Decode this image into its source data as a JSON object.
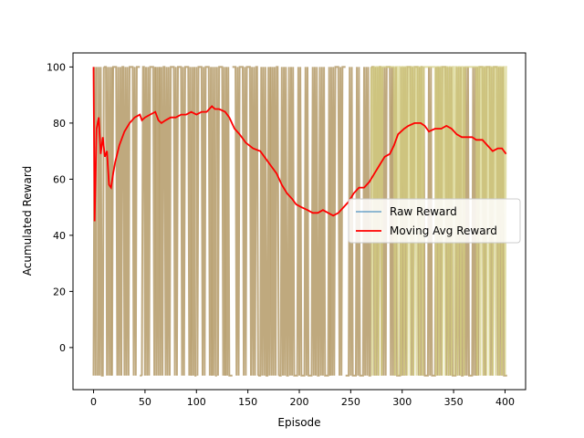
{
  "chart_data": {
    "type": "line",
    "title": "",
    "xlabel": "Episode",
    "ylabel": "Acumulated Reward",
    "xlim": [
      -20,
      420
    ],
    "ylim": [
      -15,
      105
    ],
    "x_ticks": [
      0,
      50,
      100,
      150,
      200,
      250,
      300,
      350,
      400
    ],
    "y_ticks": [
      0,
      20,
      40,
      60,
      80,
      100
    ],
    "grid": false,
    "legend_position": "center-right",
    "series": [
      {
        "name": "Raw Reward",
        "color": "#1f77b4",
        "opacity": 0.55,
        "spans": [
          [
            0,
            3,
            100
          ],
          [
            4,
            10,
            -10
          ],
          [
            10,
            18,
            100
          ],
          [
            18,
            45,
            100
          ],
          [
            45,
            47,
            -10
          ],
          [
            47,
            60,
            100
          ],
          [
            60,
            64,
            -10
          ],
          [
            64,
            95,
            100
          ],
          [
            95,
            100,
            -10
          ],
          [
            100,
            115,
            100
          ],
          [
            115,
            120,
            -10
          ],
          [
            120,
            128,
            100
          ],
          [
            128,
            135,
            -10
          ],
          [
            135,
            160,
            100
          ],
          [
            160,
            172,
            -10
          ],
          [
            172,
            180,
            100
          ],
          [
            180,
            230,
            -10
          ],
          [
            230,
            245,
            100
          ],
          [
            245,
            270,
            -10
          ],
          [
            270,
            290,
            100
          ],
          [
            290,
            300,
            -10
          ],
          [
            300,
            320,
            100
          ],
          [
            320,
            335,
            -10
          ],
          [
            335,
            345,
            100
          ],
          [
            345,
            372,
            -10
          ],
          [
            372,
            398,
            100
          ],
          [
            398,
            402,
            -10
          ]
        ]
      },
      {
        "name": "Moving Avg Reward",
        "color": "#ff0000",
        "x": [
          0,
          1,
          3,
          5,
          7,
          9,
          11,
          13,
          15,
          17,
          19,
          21,
          25,
          30,
          35,
          40,
          45,
          47,
          50,
          55,
          60,
          63,
          66,
          70,
          75,
          80,
          85,
          90,
          95,
          100,
          105,
          110,
          115,
          118,
          122,
          128,
          132,
          137,
          142,
          148,
          155,
          162,
          168,
          172,
          178,
          183,
          188,
          193,
          197,
          202,
          208,
          213,
          218,
          223,
          228,
          233,
          238,
          243,
          248,
          253,
          258,
          263,
          268,
          273,
          278,
          283,
          288,
          292,
          296,
          302,
          306,
          312,
          318,
          322,
          326,
          332,
          338,
          343,
          348,
          353,
          358,
          363,
          368,
          372,
          378,
          383,
          388,
          393,
          397,
          401
        ],
        "y": [
          100,
          45,
          78,
          82,
          69,
          75,
          68,
          70,
          58,
          57,
          62,
          66,
          72,
          77,
          80,
          82,
          83,
          81,
          82,
          83,
          84,
          81,
          80,
          81,
          82,
          82,
          83,
          83,
          84,
          83,
          84,
          84,
          86,
          85,
          85,
          84,
          82,
          78,
          76,
          73,
          71,
          70,
          67,
          65,
          62,
          58,
          55,
          53,
          51,
          50,
          49,
          48,
          48,
          49,
          48,
          47,
          48,
          50,
          52,
          55,
          57,
          57,
          59,
          62,
          65,
          68,
          69,
          72,
          76,
          78,
          79,
          80,
          80,
          79,
          77,
          78,
          78,
          79,
          78,
          76,
          75,
          75,
          75,
          74,
          74,
          72,
          70,
          71,
          71,
          69
        ]
      }
    ]
  }
}
